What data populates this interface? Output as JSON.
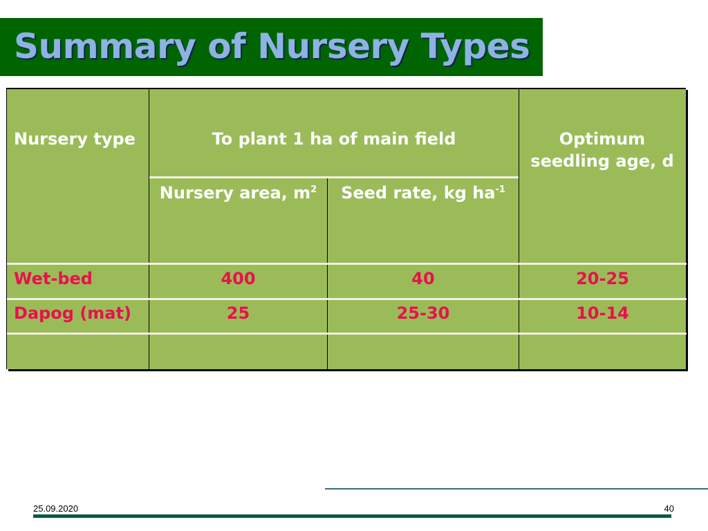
{
  "title": "Summary of Nursery Types",
  "table": {
    "headers": {
      "nursery_type": "Nursery type",
      "to_plant": "To plant 1 ha of main field",
      "optimum_age": "Optimum seedling age, d",
      "nursery_area": "Nursery area, m",
      "nursery_area_sup": "2",
      "seed_rate": "Seed rate, kg ha",
      "seed_rate_sup": "-1"
    },
    "rows": [
      {
        "type": "Wet-bed",
        "area": "400",
        "seed_rate": "40",
        "age": "20-25"
      },
      {
        "type": "Dapog (mat)",
        "area": "25",
        "seed_rate": "25-30",
        "age": "10-14"
      },
      {
        "type": "",
        "area": "",
        "seed_rate": "",
        "age": ""
      }
    ],
    "colors": {
      "fill": "#9bbb59",
      "header_text": "#ffffff",
      "value_text": "#e8114d"
    }
  },
  "footer": {
    "date": "25.09.2020",
    "page": "40"
  },
  "colors": {
    "title_bar": "#006400",
    "title_text": "#8db3e2"
  }
}
